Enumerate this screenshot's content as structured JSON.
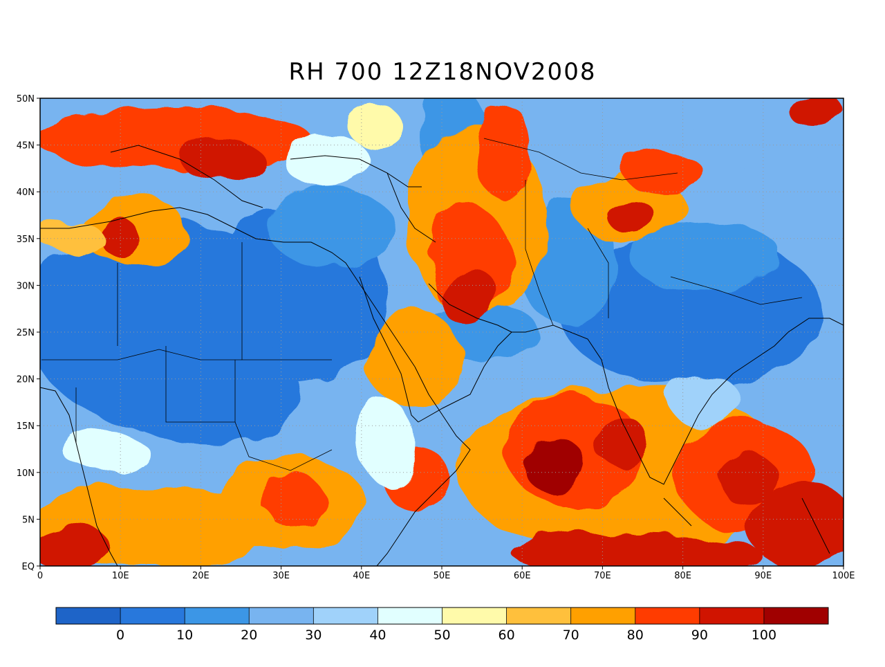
{
  "title": "RH 700 12Z18NOV2008",
  "map": {
    "lon_ticks": [
      "0",
      "10E",
      "20E",
      "30E",
      "40E",
      "50E",
      "60E",
      "70E",
      "80E",
      "90E",
      "100E"
    ],
    "lat_ticks": [
      "EQ",
      "5N",
      "10N",
      "15N",
      "20N",
      "25N",
      "30N",
      "35N",
      "40N",
      "45N",
      "50N"
    ],
    "lon_range": [
      0,
      100
    ],
    "lat_range": [
      0,
      50
    ],
    "grid": "dotted"
  },
  "colorbar": {
    "labels": [
      "0",
      "10",
      "20",
      "30",
      "40",
      "50",
      "60",
      "70",
      "80",
      "90",
      "100"
    ],
    "colors": [
      "#1e64c8",
      "#2878dc",
      "#3c96e6",
      "#78b4f0",
      "#a0d2fa",
      "#e1ffff",
      "#fffaaa",
      "#ffc03c",
      "#ffa000",
      "#ff3c00",
      "#d01400",
      "#a00000"
    ]
  }
}
